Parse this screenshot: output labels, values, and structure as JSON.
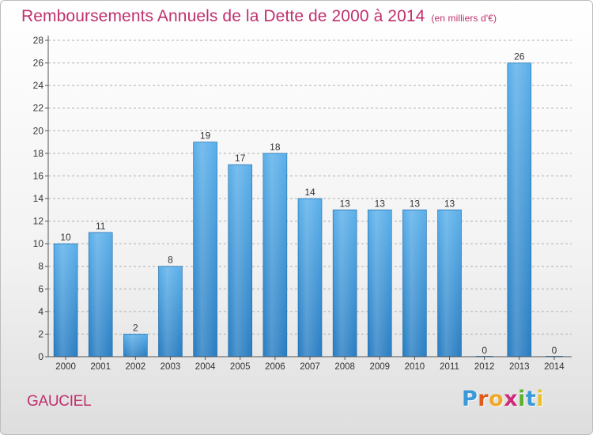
{
  "header": {
    "title": "Remboursements Annuels de la Dette de 2000 à 2014",
    "subtitle": "(en milliers d'€)"
  },
  "footer": {
    "commune": "GAUCIEL",
    "logo_letters": [
      "P",
      "r",
      "o",
      "x",
      "i",
      "t",
      "i"
    ],
    "logo_colors": [
      "#3a9ad9",
      "#e05a1c",
      "#f0a82a",
      "#d02a7a",
      "#5bb02c",
      "#3a9ad9",
      "#e8c22a"
    ]
  },
  "colors": {
    "bar_top": "#5cb0ea",
    "bar_bottom": "#2a7ec2",
    "axis": "#555555",
    "grid": "#b0b0b0",
    "text": "#333333"
  },
  "chart_data": {
    "type": "bar",
    "title": "Remboursements Annuels de la Dette de 2000 à 2014",
    "subtitle": "(en milliers d'€)",
    "categories": [
      "2000",
      "2001",
      "2002",
      "2003",
      "2004",
      "2005",
      "2006",
      "2007",
      "2008",
      "2009",
      "2010",
      "2011",
      "2012",
      "2013",
      "2014"
    ],
    "values": [
      10,
      11,
      2,
      8,
      19,
      17,
      18,
      14,
      13,
      13,
      13,
      13,
      0,
      26,
      0
    ],
    "data_labels": [
      "10",
      "11",
      "2",
      "8",
      "19",
      "17",
      "18",
      "14",
      "13",
      "13",
      "13",
      "13",
      "0",
      "26",
      "0"
    ],
    "ylim": [
      0,
      28
    ],
    "yticks": [
      0,
      2,
      4,
      6,
      8,
      10,
      12,
      14,
      16,
      18,
      20,
      22,
      24,
      26,
      28
    ],
    "grid": true,
    "xlabel": "",
    "ylabel": ""
  }
}
